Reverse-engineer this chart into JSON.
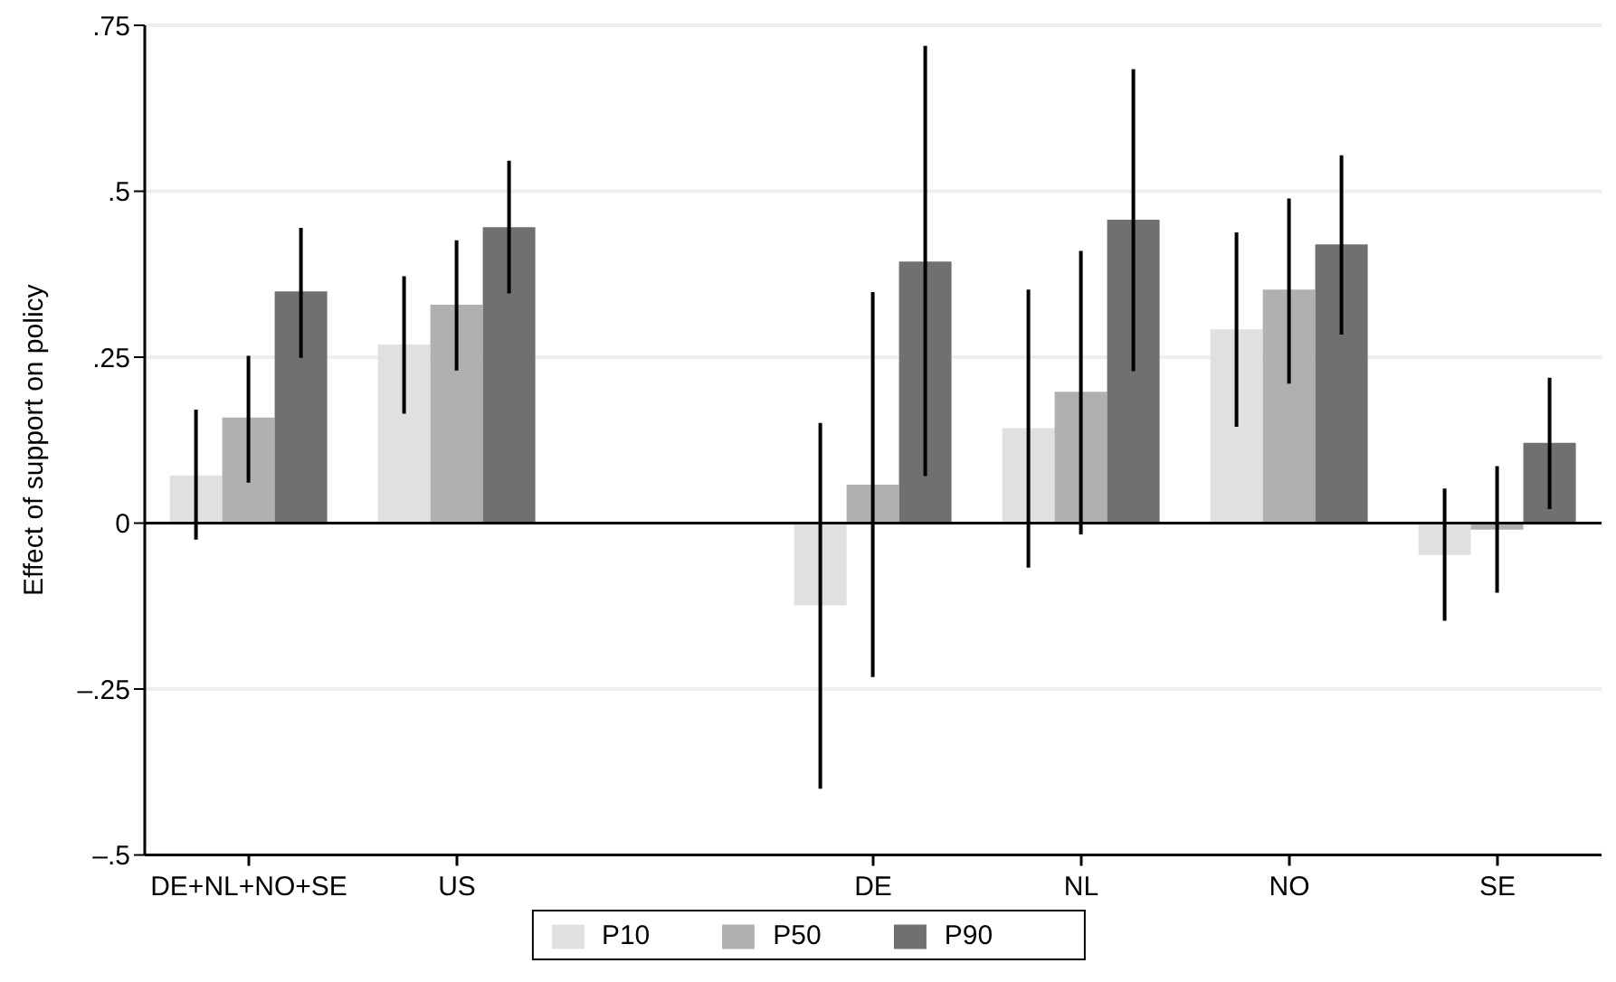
{
  "chart_data": {
    "type": "bar",
    "ylabel": "Effect of support on policy",
    "categories": [
      "DE+NL+NO+SE",
      "US",
      null,
      "DE",
      "NL",
      "NO",
      "SE"
    ],
    "series": [
      {
        "name": "P10",
        "color": "#e0e0e0",
        "values": [
          0.072,
          0.269,
          null,
          -0.124,
          0.143,
          0.292,
          -0.048
        ],
        "errors": [
          [
            -0.025,
            0.171
          ],
          [
            0.165,
            0.372
          ],
          null,
          [
            -0.4,
            0.151
          ],
          [
            -0.067,
            0.352
          ],
          [
            0.145,
            0.438
          ],
          [
            -0.147,
            0.052
          ]
        ]
      },
      {
        "name": "P50",
        "color": "#b0b0b0",
        "values": [
          0.159,
          0.329,
          null,
          0.058,
          0.198,
          0.352,
          -0.01
        ],
        "errors": [
          [
            0.061,
            0.252
          ],
          [
            0.23,
            0.426
          ],
          null,
          [
            -0.232,
            0.348
          ],
          [
            -0.017,
            0.41
          ],
          [
            0.21,
            0.489
          ],
          [
            -0.105,
            0.086
          ]
        ]
      },
      {
        "name": "P90",
        "color": "#707070",
        "values": [
          0.349,
          0.446,
          null,
          0.394,
          0.457,
          0.42,
          0.121
        ],
        "errors": [
          [
            0.249,
            0.445
          ],
          [
            0.346,
            0.546
          ],
          null,
          [
            0.071,
            0.719
          ],
          [
            0.229,
            0.684
          ],
          [
            0.284,
            0.554
          ],
          [
            0.021,
            0.219
          ]
        ]
      }
    ],
    "ylim": [
      -0.5,
      0.75
    ],
    "yticks": [
      {
        "value": -0.5,
        "label": "–.5"
      },
      {
        "value": -0.25,
        "label": "–.25"
      },
      0,
      {
        "value": 0.25,
        "label": ".25"
      },
      {
        "value": 0.5,
        "label": ".5"
      },
      {
        "value": 0.75,
        "label": ".75"
      }
    ],
    "ref_lines": [
      {
        "axis": "y",
        "value": 0,
        "color": "#000000"
      }
    ],
    "grid": "y",
    "legend": "bottom"
  }
}
